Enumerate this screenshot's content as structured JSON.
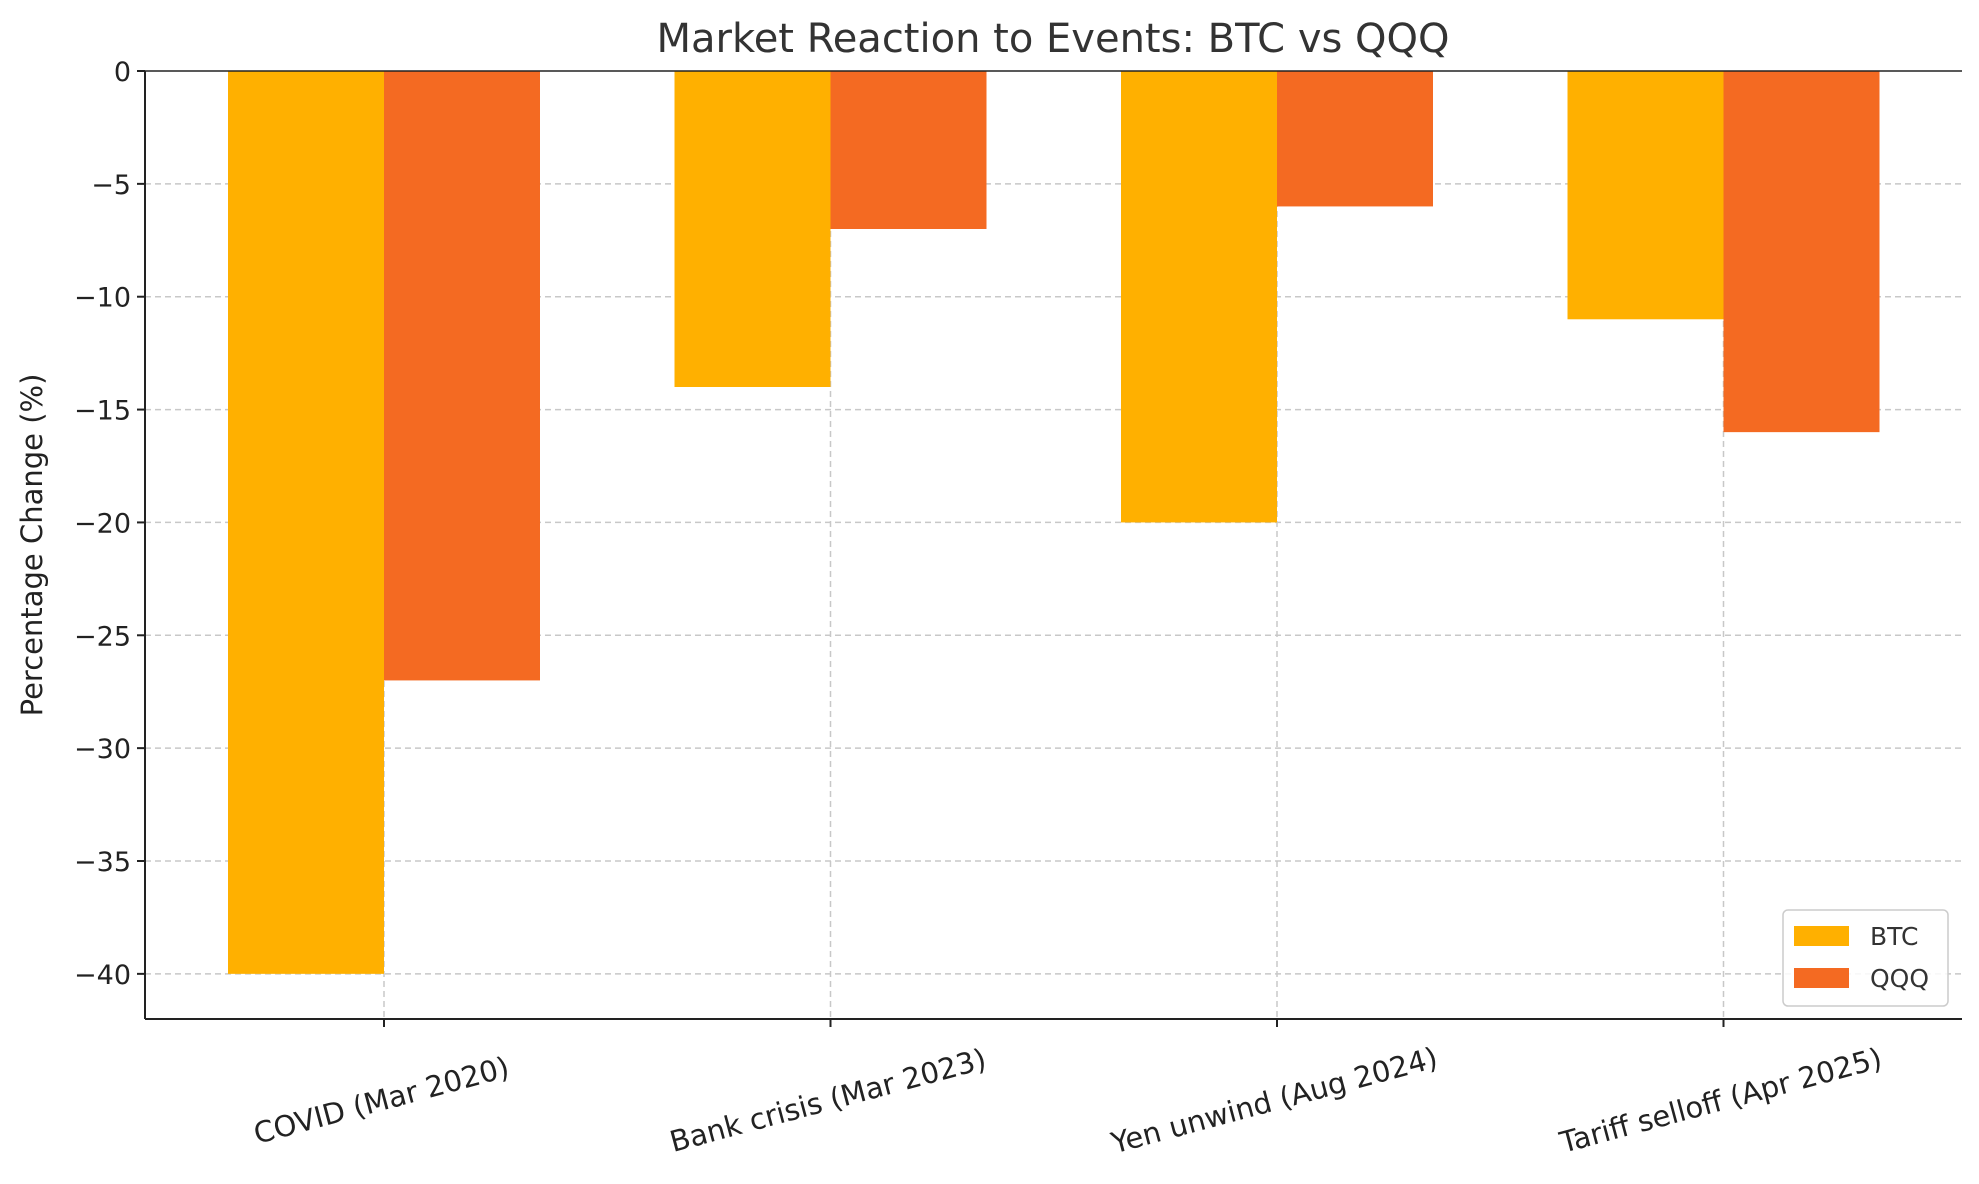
{
  "chart_data": {
    "type": "bar",
    "title": "Market Reaction to Events: BTC vs QQQ",
    "xlabel": "",
    "ylabel": "Percentage Change (%)",
    "categories": [
      "COVID (Mar 2020)",
      "Bank crisis (Mar 2023)",
      "Yen unwind (Aug 2024)",
      "Tariff selloff (Apr 2025)"
    ],
    "series": [
      {
        "name": "BTC",
        "color": "#FFB000",
        "values": [
          -40,
          -14,
          -20,
          -11
        ]
      },
      {
        "name": "QQQ",
        "color": "#F46A22",
        "values": [
          -27,
          -7,
          -6,
          -16
        ]
      }
    ],
    "ylim": [
      -42,
      0
    ],
    "yticks": [
      0,
      -5,
      -10,
      -15,
      -20,
      -25,
      -30,
      -35,
      -40
    ],
    "ytick_labels": [
      "0",
      "−5",
      "−10",
      "−15",
      "−20",
      "−25",
      "−30",
      "−35",
      "−40"
    ],
    "grid": true,
    "legend_position": "bottom-right",
    "category_label_rotation_deg": -15
  }
}
